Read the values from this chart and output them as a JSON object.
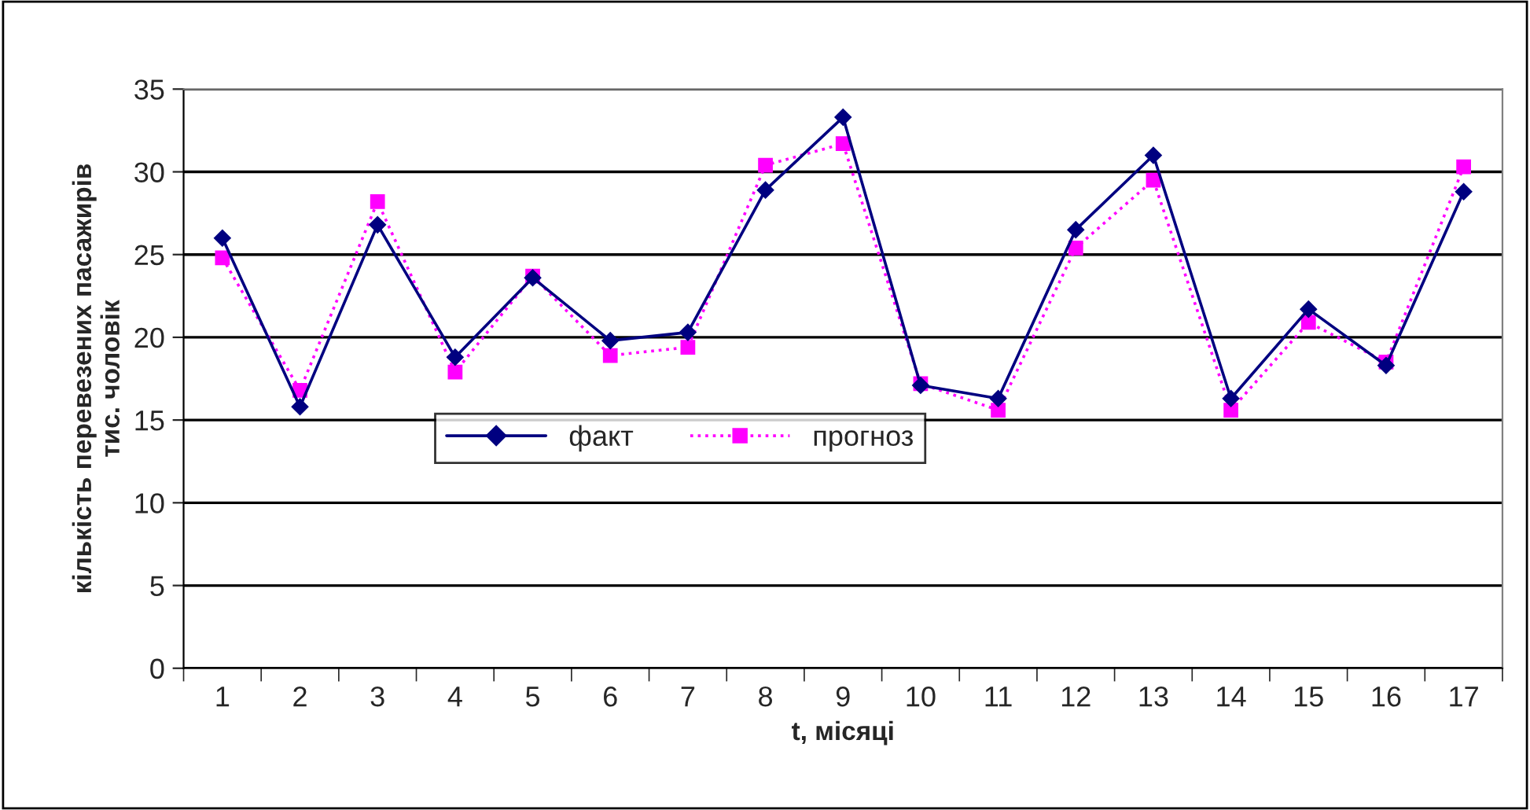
{
  "chart_data": {
    "type": "line",
    "xlabel": "t, місяці",
    "ylabel": "кількість перевезених пасажирів\nтис. чоловік",
    "categories": [
      "1",
      "2",
      "3",
      "4",
      "5",
      "6",
      "7",
      "8",
      "9",
      "10",
      "11",
      "12",
      "13",
      "14",
      "15",
      "16",
      "17"
    ],
    "series": [
      {
        "name": "факт",
        "color": "#000080",
        "marker": "diamond",
        "line_style": "solid",
        "values": [
          26.0,
          15.8,
          26.8,
          18.8,
          23.6,
          19.8,
          20.3,
          28.9,
          33.3,
          17.1,
          16.3,
          26.5,
          31.0,
          16.3,
          21.7,
          18.3,
          28.8
        ]
      },
      {
        "name": "прогноз",
        "color": "#ff00ff",
        "marker": "square",
        "line_style": "dotted",
        "values": [
          24.8,
          16.8,
          28.2,
          17.9,
          23.7,
          18.9,
          19.4,
          30.4,
          31.7,
          17.2,
          15.6,
          25.4,
          29.5,
          15.6,
          20.9,
          18.5,
          30.3
        ]
      }
    ],
    "ylim": [
      0,
      35
    ],
    "yticks": [
      0,
      5,
      10,
      15,
      20,
      25,
      30,
      35
    ],
    "grid": "y",
    "legend": "center left"
  }
}
